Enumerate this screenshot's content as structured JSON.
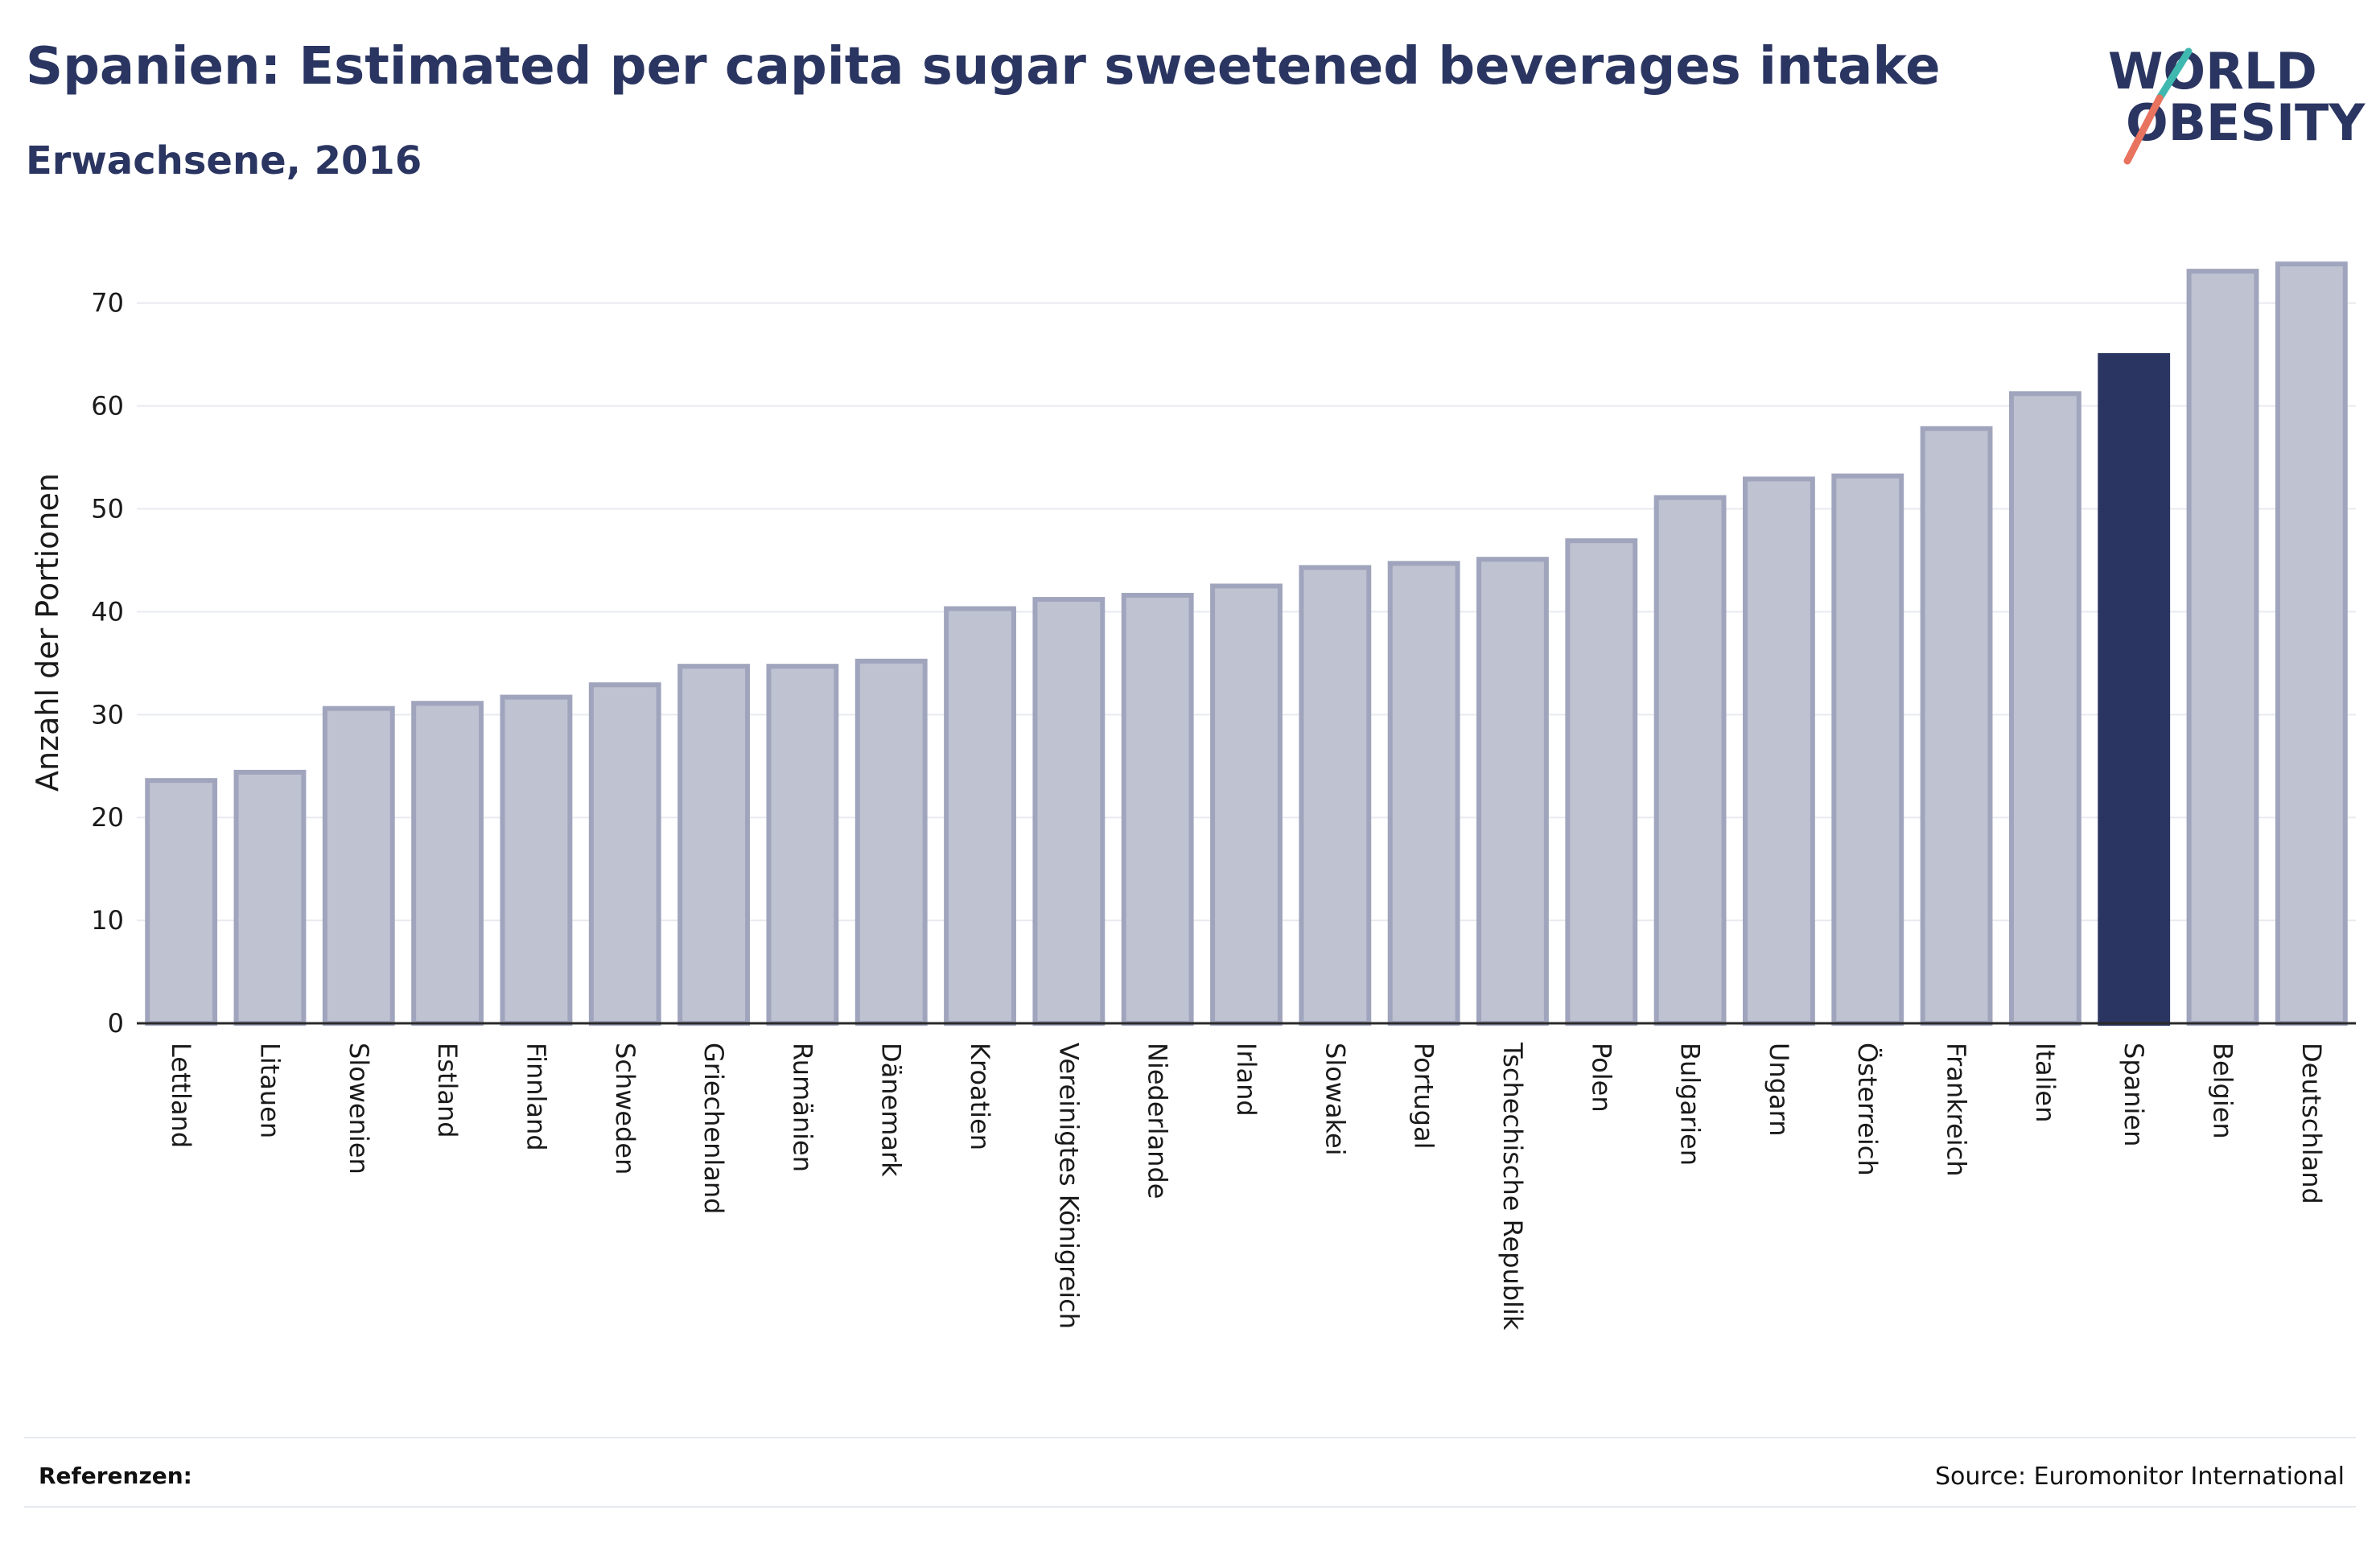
{
  "header": {
    "title": "Spanien: Estimated per capita sugar sweetened beverages intake",
    "subtitle": "Erwachsene, 2016"
  },
  "logo": {
    "line1": "WORLD",
    "line2": "OBESITY",
    "accent_teal": "#3fb8b0",
    "accent_coral": "#e8735f"
  },
  "footer": {
    "references_label": "Referenzen:",
    "source": "Source: Euromonitor International"
  },
  "colors": {
    "bar": "#bfc2d1",
    "bar_outline": "#a0a5bd",
    "highlight": "#2a3561",
    "grid": "#e8eaf0",
    "axis": "#2a2a2a"
  },
  "chart_data": {
    "type": "bar",
    "title": "Spanien: Estimated per capita sugar sweetened beverages intake",
    "subtitle": "Erwachsene, 2016",
    "xlabel": "",
    "ylabel": "Anzahl der Portionen",
    "ylim": [
      0,
      76
    ],
    "yticks": [
      0,
      10,
      20,
      30,
      40,
      50,
      60,
      70
    ],
    "grid": true,
    "highlight": "Spanien",
    "categories": [
      "Lettland",
      "Litauen",
      "Slowenien",
      "Estland",
      "Finnland",
      "Schweden",
      "Griechenland",
      "Rumänien",
      "Dänemark",
      "Kroatien",
      "Vereinigtes Königreich",
      "Niederlande",
      "Irland",
      "Slowakei",
      "Portugal",
      "Tschechische Republik",
      "Polen",
      "Bulgarien",
      "Ungarn",
      "Österreich",
      "Frankreich",
      "Italien",
      "Spanien",
      "Belgien",
      "Deutschland"
    ],
    "values": [
      23.6,
      24.4,
      30.6,
      31.1,
      31.7,
      32.9,
      34.7,
      34.7,
      35.2,
      40.3,
      41.2,
      41.6,
      42.5,
      44.3,
      44.7,
      45.1,
      46.9,
      51.1,
      52.9,
      53.2,
      57.8,
      61.2,
      64.9,
      73.1,
      73.8
    ]
  }
}
